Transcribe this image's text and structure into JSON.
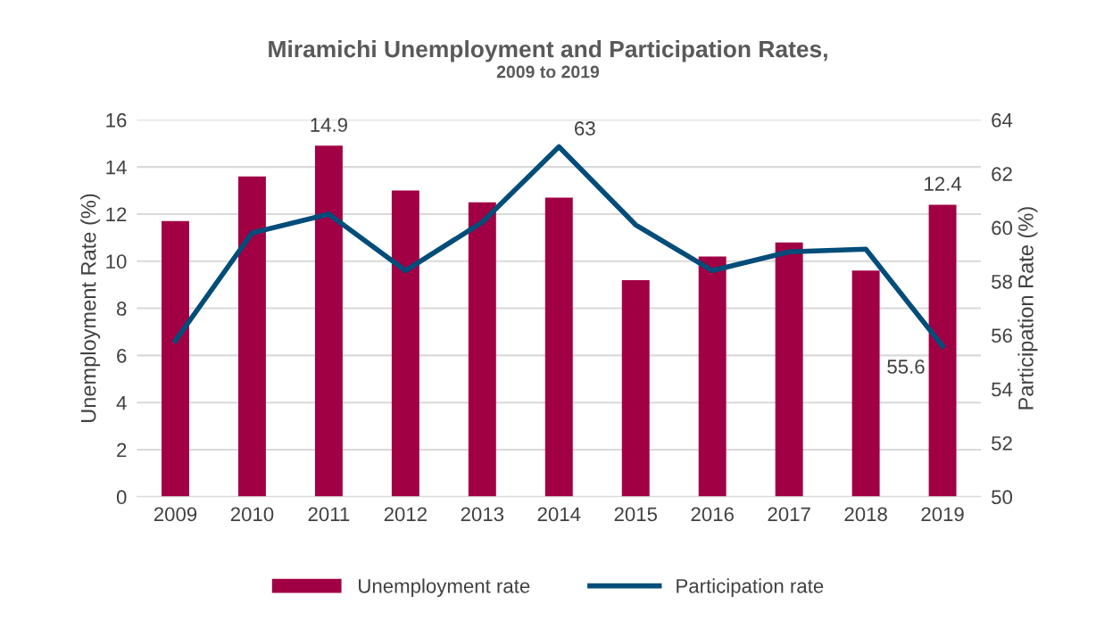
{
  "chart_data": {
    "type": "bar",
    "title": "Miramichi Unemployment and Participation Rates,",
    "subtitle": "2009 to 2019",
    "ylabel": "Unemployment Rate (%)",
    "y2label": "Participation Rate (%)",
    "categories": [
      "2009",
      "2010",
      "2011",
      "2012",
      "2013",
      "2014",
      "2015",
      "2016",
      "2017",
      "2018",
      "2019"
    ],
    "series": [
      {
        "name": "Unemployment rate",
        "color": "#a10044",
        "values": [
          11.7,
          13.6,
          14.9,
          13.0,
          12.5,
          12.7,
          9.2,
          10.2,
          10.8,
          9.6,
          12.4
        ],
        "value_labels": [
          null,
          null,
          "14.9",
          null,
          null,
          null,
          null,
          null,
          null,
          null,
          "12.4"
        ]
      },
      {
        "name": "Participation rate",
        "type": "line",
        "axis": "y2",
        "color": "#004d7a",
        "marker": "none",
        "line_style": "solid",
        "values": [
          55.8,
          59.8,
          60.5,
          58.4,
          60.2,
          63,
          60.1,
          58.4,
          59.1,
          59.2,
          55.6
        ],
        "value_labels": [
          null,
          null,
          null,
          null,
          null,
          "63",
          null,
          null,
          null,
          null,
          "55.6"
        ]
      }
    ],
    "ylim": [
      0,
      16
    ],
    "yticks": [
      0,
      2,
      4,
      6,
      8,
      10,
      12,
      14,
      16
    ],
    "y2lim": [
      50,
      64
    ],
    "y2ticks": [
      50,
      52,
      54,
      56,
      58,
      60,
      62,
      64
    ],
    "grid": "y",
    "legend": "bottom"
  }
}
